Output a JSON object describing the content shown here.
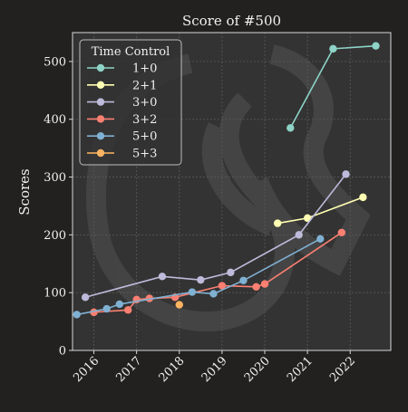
{
  "chart_data": {
    "type": "line",
    "title": "Score of #500",
    "xlabel": "",
    "ylabel": "Scores",
    "xlim": [
      2015.5,
      2022.95
    ],
    "ylim": [
      0,
      550
    ],
    "x_ticks": [
      2016,
      2017,
      2018,
      2019,
      2020,
      2021,
      2022
    ],
    "x_tick_labels": [
      "2016",
      "2017",
      "2018",
      "2019",
      "2020",
      "2021",
      "2022"
    ],
    "y_ticks": [
      0,
      100,
      200,
      300,
      400,
      500
    ],
    "y_tick_labels": [
      "0",
      "100",
      "200",
      "300",
      "400",
      "500"
    ],
    "grid": true,
    "legend": {
      "title": "Time Control",
      "placement": "top-left"
    },
    "series": [
      {
        "name": "1+0",
        "color": "#8dd3c7",
        "points": [
          [
            2020.6,
            385
          ],
          [
            2021.6,
            522
          ],
          [
            2022.6,
            527
          ]
        ]
      },
      {
        "name": "2+1",
        "color": "#ffffb3",
        "points": [
          [
            2020.3,
            220
          ],
          [
            2021.0,
            229
          ],
          [
            2022.3,
            265
          ]
        ]
      },
      {
        "name": "3+0",
        "color": "#bebada",
        "points": [
          [
            2015.8,
            92
          ],
          [
            2017.6,
            128
          ],
          [
            2018.5,
            122
          ],
          [
            2019.2,
            135
          ],
          [
            2020.8,
            200
          ],
          [
            2021.9,
            305
          ]
        ]
      },
      {
        "name": "3+2",
        "color": "#fb8072",
        "points": [
          [
            2016.0,
            66
          ],
          [
            2016.8,
            70
          ],
          [
            2017.0,
            88
          ],
          [
            2017.3,
            90
          ],
          [
            2017.9,
            92
          ],
          [
            2019.0,
            112
          ],
          [
            2019.8,
            110
          ],
          [
            2020.0,
            115
          ],
          [
            2021.8,
            204
          ]
        ]
      },
      {
        "name": "5+0",
        "color": "#80b1d3",
        "points": [
          [
            2015.6,
            62
          ],
          [
            2016.3,
            72
          ],
          [
            2016.6,
            80
          ],
          [
            2018.3,
            101
          ],
          [
            2018.8,
            98
          ],
          [
            2019.5,
            121
          ],
          [
            2021.3,
            193
          ]
        ]
      },
      {
        "name": "5+3",
        "color": "#fdb462",
        "points": [
          [
            2018.0,
            79
          ]
        ]
      }
    ]
  }
}
